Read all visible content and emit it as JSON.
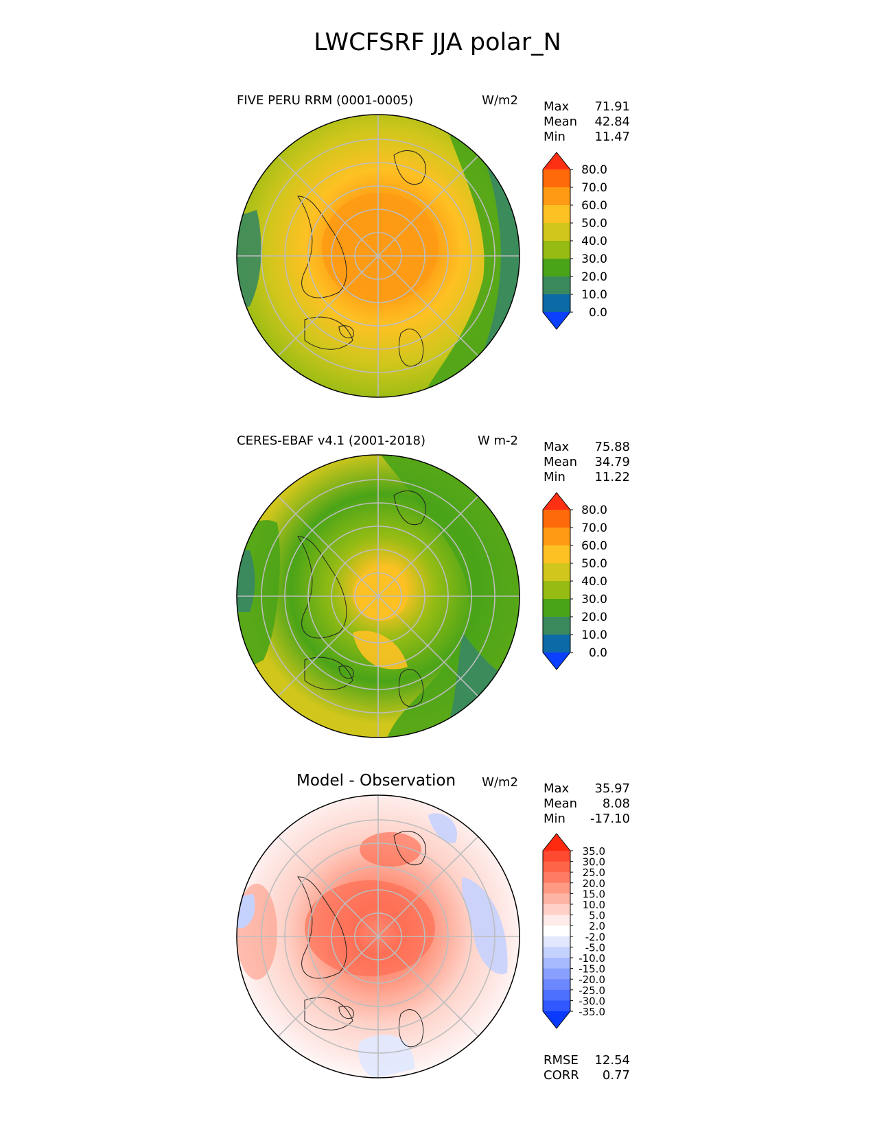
{
  "figure": {
    "title": "LWCFSRF JJA polar_N"
  },
  "panels": [
    {
      "title": "FIVE PERU RRM (0001-0005)",
      "units": "W/m2",
      "stats": {
        "max_label": "Max",
        "max": "71.91",
        "mean_label": "Mean",
        "mean": "42.84",
        "min_label": "Min",
        "min": "11.47"
      },
      "colorbar": {
        "ticks": [
          "80.0",
          "70.0",
          "60.0",
          "50.0",
          "40.0",
          "30.0",
          "20.0",
          "10.0",
          "0.0"
        ],
        "colors": [
          "#fe3014",
          "#fe6a0a",
          "#fe9a14",
          "#fec124",
          "#d0c61c",
          "#96bc14",
          "#4aa418",
          "#3a8a5e",
          "#0c6aa6",
          "#0a40fe"
        ]
      }
    },
    {
      "title": "CERES-EBAF v4.1 (2001-2018)",
      "units": "W m-2",
      "stats": {
        "max_label": "Max",
        "max": "75.88",
        "mean_label": "Mean",
        "mean": "34.79",
        "min_label": "Min",
        "min": "11.22"
      },
      "colorbar": {
        "ticks": [
          "80.0",
          "70.0",
          "60.0",
          "50.0",
          "40.0",
          "30.0",
          "20.0",
          "10.0",
          "0.0"
        ],
        "colors": [
          "#fe3014",
          "#fe6a0a",
          "#fe9a14",
          "#fec124",
          "#d0c61c",
          "#96bc14",
          "#4aa418",
          "#3a8a5e",
          "#0c6aa6",
          "#0a40fe"
        ]
      }
    },
    {
      "title": "Model - Observation",
      "units": "W/m2",
      "stats": {
        "max_label": "Max",
        "max": "35.97",
        "mean_label": "Mean",
        "mean": "8.08",
        "min_label": "Min",
        "min": "-17.10"
      },
      "extra": {
        "rmse_label": "RMSE",
        "rmse": "12.54",
        "corr_label": "CORR",
        "corr": "0.77"
      },
      "colorbar": {
        "ticks": [
          "35.0",
          "30.0",
          "25.0",
          "20.0",
          "15.0",
          "10.0",
          "5.0",
          "2.0",
          "-2.0",
          "-5.0",
          "-10.0",
          "-15.0",
          "-20.0",
          "-25.0",
          "-30.0",
          "-35.0"
        ],
        "colors": [
          "#fe2a10",
          "#fe4a30",
          "#fe6448",
          "#fe7c64",
          "#fe9a84",
          "#feb4a4",
          "#fed2c8",
          "#feecea",
          "#ffffff",
          "#e2e8fe",
          "#c6d2fe",
          "#a8bafe",
          "#8aa0fe",
          "#6c88fe",
          "#4e70fe",
          "#3058fe",
          "#0a3afe"
        ]
      }
    }
  ],
  "chart_data": [
    {
      "type": "heatmap",
      "title": "FIVE PERU RRM (0001-0005)",
      "projection": "north polar stereographic",
      "units": "W/m2",
      "levels": [
        0,
        10,
        20,
        30,
        40,
        50,
        60,
        70,
        80
      ],
      "max": 71.91,
      "mean": 42.84,
      "min": 11.47,
      "note": "highest values (60-70) near the pole, lowest (10-20) over the North Atlantic"
    },
    {
      "type": "heatmap",
      "title": "CERES-EBAF v4.1 (2001-2018)",
      "projection": "north polar stereographic",
      "units": "W m-2",
      "levels": [
        0,
        10,
        20,
        30,
        40,
        50,
        60,
        70,
        80
      ],
      "max": 75.88,
      "mean": 34.79,
      "min": 11.22
    },
    {
      "type": "heatmap",
      "title": "Model - Observation",
      "projection": "north polar stereographic",
      "units": "W/m2",
      "levels": [
        -35,
        -30,
        -25,
        -20,
        -15,
        -10,
        -5,
        -2,
        2,
        5,
        10,
        15,
        20,
        25,
        30,
        35
      ],
      "max": 35.97,
      "mean": 8.08,
      "min": -17.1,
      "rmse": 12.54,
      "corr": 0.77
    }
  ]
}
